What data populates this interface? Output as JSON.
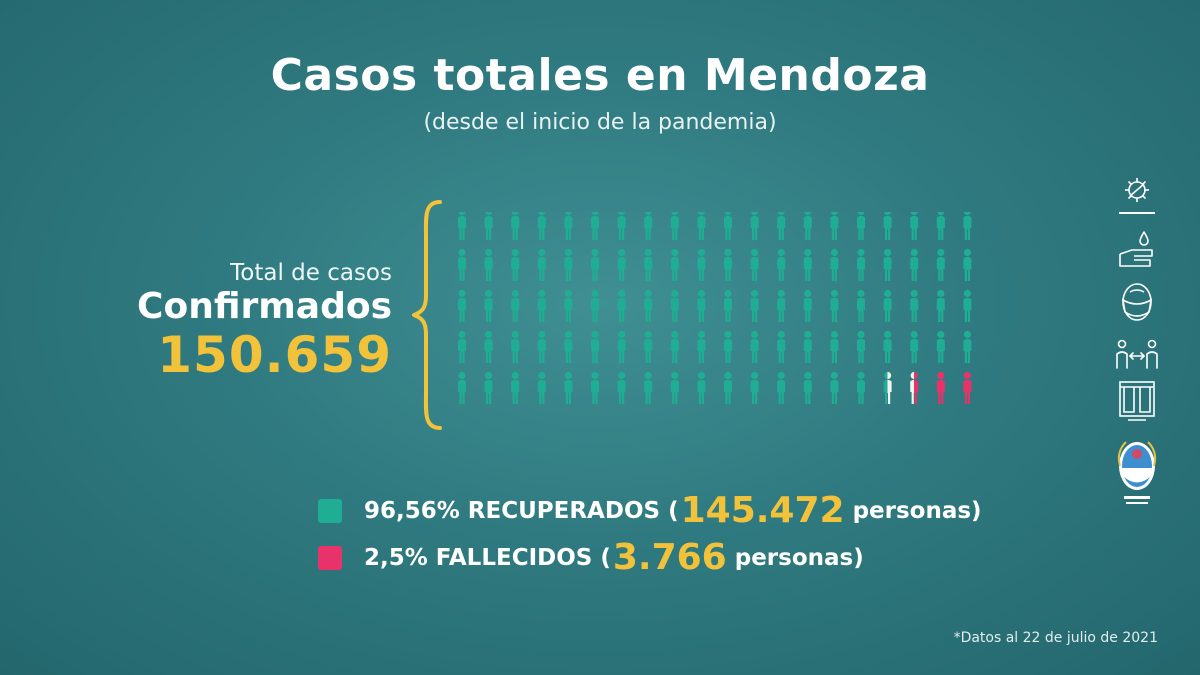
{
  "header": {
    "title": "Casos totales en Mendoza",
    "subtitle": "(desde el inicio de la pandemia)"
  },
  "summary": {
    "label_small": "Total de casos",
    "label_big": "Confirmados",
    "total": "150.659"
  },
  "legend": {
    "recovered": {
      "percent_label": "96,56% RECUPERADOS (",
      "count": "145.472",
      "suffix": "personas)",
      "color": "#1fae94"
    },
    "deceased": {
      "percent_label": "2,5% FALLECIDOS (",
      "count": "3.766",
      "suffix": "personas)",
      "color": "#e8336a"
    }
  },
  "footnote": "*Datos al 22 de julio de 2021",
  "chart_data": {
    "type": "pictogram",
    "rows": 5,
    "columns": 20,
    "total_icons": 100,
    "categories": [
      "RECUPERADOS",
      "FALLECIDOS"
    ],
    "values_percent": [
      96.56,
      2.5
    ],
    "values_count": [
      145472,
      3766
    ],
    "total_count": 150659,
    "icons_recovered": 96.5,
    "icons_deceased": 2.5,
    "colors": {
      "recovered": "#1fae94",
      "deceased": "#e8336a",
      "other": "#f4f4ee",
      "bracket": "#f2c23a"
    }
  },
  "sidebar_icons": [
    "virus-icon",
    "hand-wash-icon",
    "face-mask-icon",
    "social-distance-icon",
    "window-ventilation-icon",
    "mendoza-shield-logo"
  ]
}
